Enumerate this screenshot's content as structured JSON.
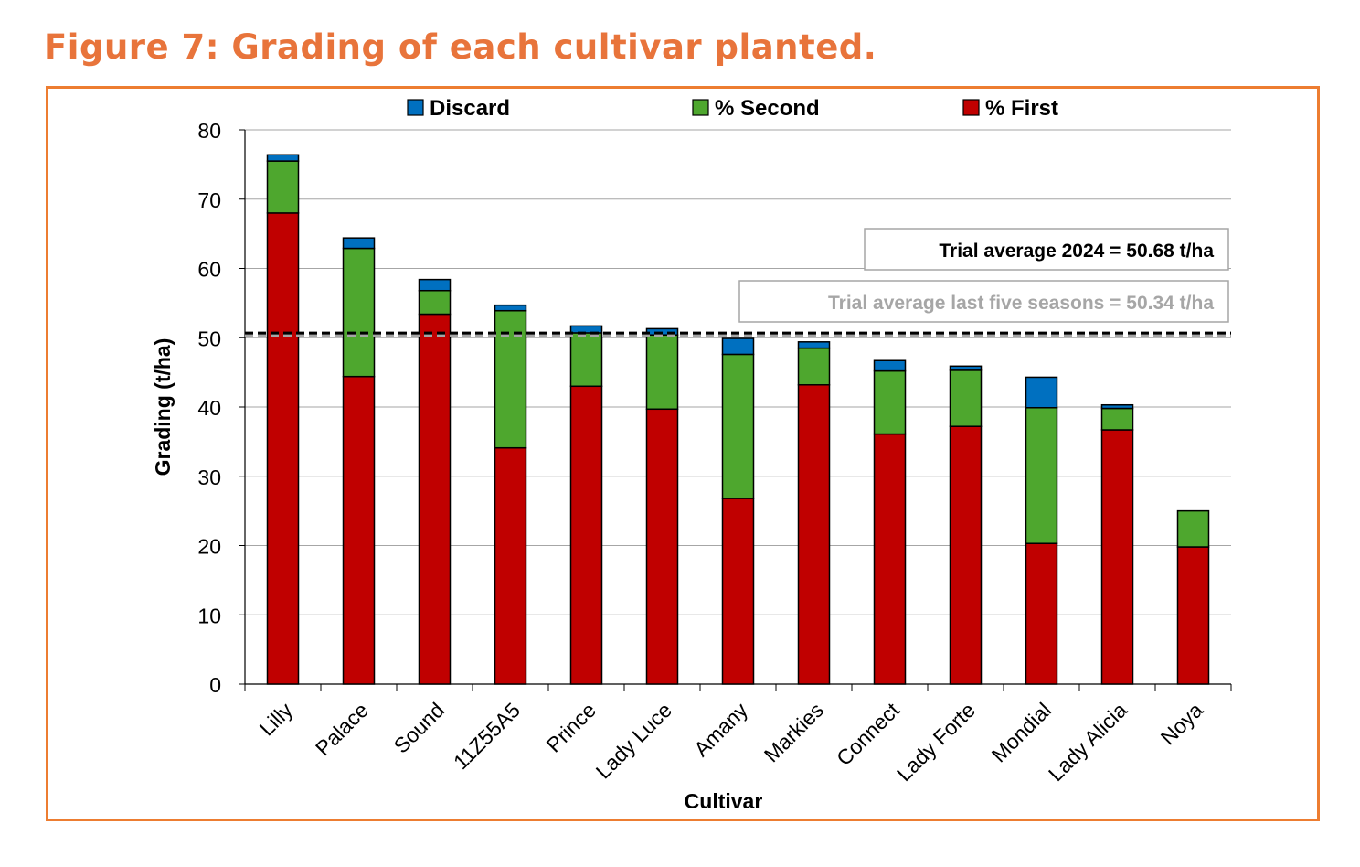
{
  "figure": {
    "title": "Figure 7: Grading of each cultivar planted.",
    "accent_color": "#ed7d31",
    "title_color": "#e8743b"
  },
  "chart_data": {
    "type": "bar",
    "stacked": true,
    "categories": [
      "Lilly",
      "Palace",
      "Sound",
      "11Z55A5",
      "Prince",
      "Lady Luce",
      "Amany",
      "Markies",
      "Connect",
      "Lady Forte",
      "Mondial",
      "Lady Alicia",
      "Noya"
    ],
    "series": [
      {
        "name": "% First",
        "color": "#c00000",
        "values": [
          68.0,
          44.4,
          53.4,
          34.1,
          43.0,
          39.7,
          26.8,
          43.2,
          36.1,
          37.2,
          20.3,
          36.7,
          19.8
        ]
      },
      {
        "name": "% Second",
        "color": "#4ea72e",
        "values": [
          7.5,
          18.5,
          3.4,
          19.8,
          7.7,
          10.7,
          20.8,
          5.3,
          9.1,
          8.1,
          19.6,
          3.1,
          5.2
        ]
      },
      {
        "name": "Discard",
        "color": "#0070c0",
        "values": [
          0.9,
          1.5,
          1.6,
          0.8,
          1.0,
          0.9,
          2.3,
          0.9,
          1.5,
          0.6,
          4.4,
          0.5,
          0.0
        ]
      }
    ],
    "legend_order": [
      "Discard",
      "% Second",
      "% First"
    ],
    "legend_position": "top",
    "xlabel": "Cultivar",
    "ylabel": "Grading (t/ha)",
    "ylim": [
      0,
      80
    ],
    "yticks": [
      0,
      10,
      20,
      30,
      40,
      50,
      60,
      70,
      80
    ],
    "grid": true,
    "reference_lines": [
      {
        "label": "Trial average 2024 = 50.68 t/ha",
        "value": 50.68,
        "color": "#000000",
        "style": "dashed"
      },
      {
        "label": "Trial average last five seasons = 50.34 t/ha",
        "value": 50.34,
        "color": "#a6a6a6",
        "style": "dashed"
      }
    ]
  }
}
